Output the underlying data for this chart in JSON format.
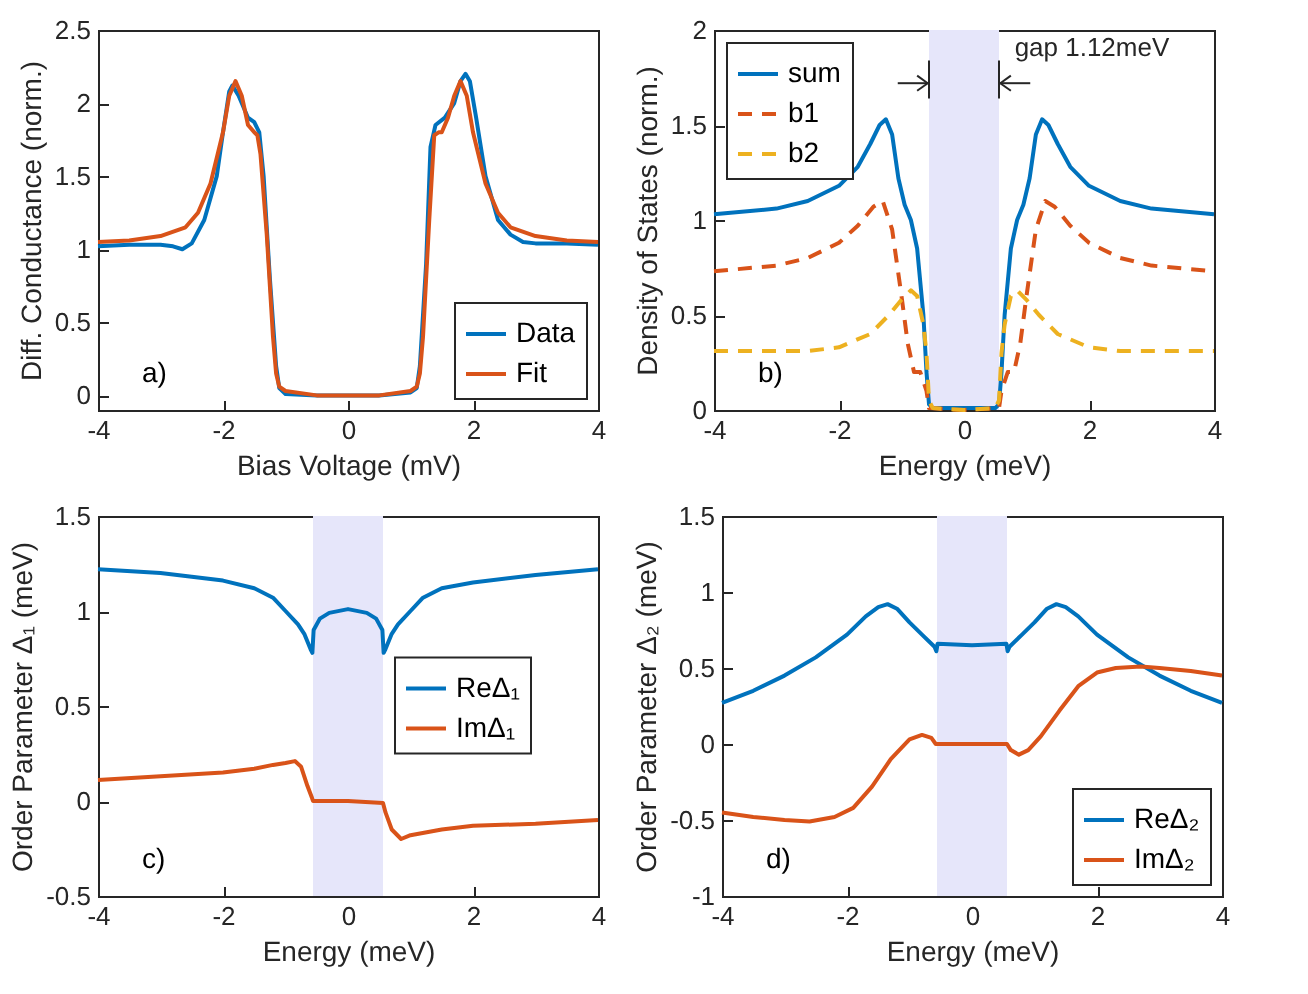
{
  "chart_data": [
    {
      "type": "line",
      "xlabel": "Bias Voltage (mV)",
      "ylabel": "Diff. Conductance (norm.)",
      "xlim": [
        -4,
        4
      ],
      "xticks": [
        -4,
        -2,
        0,
        2,
        4
      ],
      "ylim": [
        -0.1,
        2.5
      ],
      "yticks": [
        0,
        0.5,
        1,
        1.5,
        2,
        2.5
      ],
      "legend": "bottom right",
      "annotations": [
        "a)"
      ],
      "series": [
        {
          "name": "Data",
          "color": "#0072bd",
          "x": [
            -4,
            -3.5,
            -3,
            -2.8,
            -2.65,
            -2.5,
            -2.3,
            -2.1,
            -2,
            -1.9,
            -1.85,
            -1.75,
            -1.6,
            -1.5,
            -1.42,
            -1.35,
            -1.25,
            -1.15,
            -1.1,
            -1,
            -0.5,
            0,
            0.5,
            1,
            1.1,
            1.15,
            1.25,
            1.32,
            1.4,
            1.55,
            1.7,
            1.8,
            1.88,
            1.95,
            2.05,
            2.2,
            2.4,
            2.6,
            2.8,
            3,
            3.5,
            4
          ],
          "values": [
            1.02,
            1.03,
            1.03,
            1.02,
            1.0,
            1.04,
            1.2,
            1.5,
            1.8,
            2.08,
            2.12,
            2.05,
            1.9,
            1.87,
            1.8,
            1.5,
            0.8,
            0.2,
            0.05,
            0.01,
            0,
            0,
            0,
            0.02,
            0.05,
            0.2,
            0.9,
            1.7,
            1.85,
            1.9,
            2.0,
            2.15,
            2.2,
            2.15,
            1.9,
            1.5,
            1.2,
            1.1,
            1.05,
            1.04,
            1.04,
            1.03
          ]
        },
        {
          "name": "Fit",
          "color": "#d95319",
          "x": [
            -4,
            -3.5,
            -3,
            -2.6,
            -2.4,
            -2.2,
            -2,
            -1.9,
            -1.8,
            -1.7,
            -1.6,
            -1.5,
            -1.45,
            -1.4,
            -1.3,
            -1.2,
            -1.15,
            -1.1,
            -1,
            -0.5,
            0,
            0.5,
            1,
            1.1,
            1.15,
            1.2,
            1.3,
            1.38,
            1.45,
            1.5,
            1.6,
            1.7,
            1.8,
            1.9,
            2,
            2.2,
            2.4,
            2.6,
            3,
            3.5,
            4
          ],
          "values": [
            1.05,
            1.06,
            1.09,
            1.15,
            1.25,
            1.45,
            1.8,
            2.05,
            2.15,
            2.05,
            1.85,
            1.8,
            1.78,
            1.65,
            1.1,
            0.4,
            0.15,
            0.06,
            0.03,
            0,
            0,
            0,
            0.03,
            0.06,
            0.15,
            0.4,
            1.2,
            1.78,
            1.8,
            1.8,
            1.9,
            2.05,
            2.15,
            2.05,
            1.8,
            1.45,
            1.25,
            1.15,
            1.09,
            1.06,
            1.05
          ]
        }
      ]
    },
    {
      "type": "line",
      "xlabel": "Energy (meV)",
      "ylabel": "Density of States (norm.)",
      "xlim": [
        -4,
        4
      ],
      "xticks": [
        -4,
        -2,
        0,
        2,
        4
      ],
      "ylim": [
        0,
        2
      ],
      "yticks": [
        0,
        0.5,
        1,
        1.5,
        2
      ],
      "legend": "top left",
      "annotations": [
        "b)"
      ],
      "bands": [
        {
          "axis": "x",
          "from": -0.56,
          "to": 0.56,
          "label": "gap 1.12meV",
          "color": "#e6e6fa"
        }
      ],
      "series": [
        {
          "name": "sum",
          "color": "#0072bd",
          "line_style": "solid",
          "x": [
            -4,
            -3,
            -2.5,
            -2,
            -1.7,
            -1.5,
            -1.35,
            -1.25,
            -1.15,
            -1.05,
            -0.95,
            -0.85,
            -0.75,
            -0.65,
            -0.6,
            -0.56,
            -0.5,
            0,
            0.5,
            0.56,
            0.6,
            0.65,
            0.75,
            0.85,
            0.95,
            1.05,
            1.15,
            1.25,
            1.35,
            1.5,
            1.7,
            2,
            2.5,
            3,
            4
          ],
          "values": [
            1.03,
            1.06,
            1.1,
            1.18,
            1.28,
            1.4,
            1.5,
            1.53,
            1.45,
            1.22,
            1.08,
            1.0,
            0.85,
            0.5,
            0.2,
            0.03,
            0.01,
            0.01,
            0.01,
            0.03,
            0.2,
            0.5,
            0.85,
            1.0,
            1.08,
            1.22,
            1.45,
            1.53,
            1.5,
            1.4,
            1.28,
            1.18,
            1.1,
            1.06,
            1.03
          ]
        },
        {
          "name": "b1",
          "color": "#d95319",
          "line_style": "dashed",
          "x": [
            -4,
            -3,
            -2.5,
            -2,
            -1.7,
            -1.45,
            -1.3,
            -1.15,
            -1,
            -0.9,
            -0.8,
            -0.7,
            -0.6,
            -0.56,
            0,
            0.56,
            0.6,
            0.7,
            0.8,
            0.9,
            1,
            1.15,
            1.3,
            1.45,
            1.7,
            2,
            2.5,
            3,
            4
          ],
          "values": [
            0.73,
            0.76,
            0.8,
            0.88,
            0.97,
            1.07,
            1.1,
            0.95,
            0.6,
            0.35,
            0.2,
            0.2,
            0.1,
            0.01,
            0,
            0.01,
            0.1,
            0.2,
            0.2,
            0.35,
            0.6,
            0.95,
            1.1,
            1.07,
            0.97,
            0.88,
            0.8,
            0.76,
            0.73
          ]
        },
        {
          "name": "b2",
          "color": "#edb120",
          "line_style": "dashed",
          "x": [
            -4,
            -2.5,
            -2,
            -1.5,
            -1.2,
            -1,
            -0.85,
            -0.75,
            -0.65,
            -0.6,
            -0.56,
            -0.5,
            0,
            0.5,
            0.56,
            0.6,
            0.65,
            0.75,
            0.85,
            1,
            1.2,
            1.5,
            2,
            2.5,
            4
          ],
          "values": [
            0.31,
            0.31,
            0.33,
            0.4,
            0.5,
            0.58,
            0.63,
            0.6,
            0.45,
            0.3,
            0.05,
            0.01,
            0,
            0.01,
            0.05,
            0.3,
            0.45,
            0.6,
            0.63,
            0.58,
            0.5,
            0.4,
            0.33,
            0.31,
            0.31
          ]
        }
      ]
    },
    {
      "type": "line",
      "xlabel": "Energy (meV)",
      "ylabel": "Order Parameter Δ₁ (meV)",
      "xlim": [
        -4,
        4
      ],
      "xticks": [
        -4,
        -2,
        0,
        2,
        4
      ],
      "ylim": [
        -0.5,
        1.5
      ],
      "yticks": [
        -0.5,
        0,
        0.5,
        1,
        1.5
      ],
      "legend": "right",
      "annotations": [
        "c)"
      ],
      "bands": [
        {
          "axis": "x",
          "from": -0.56,
          "to": 0.56,
          "color": "#e6e6fa"
        }
      ],
      "series": [
        {
          "name": "ReΔ₁",
          "color": "#0072bd",
          "x": [
            -4,
            -3,
            -2,
            -1.5,
            -1.2,
            -1,
            -0.8,
            -0.7,
            -0.6,
            -0.57,
            -0.55,
            -0.45,
            -0.3,
            0,
            0.3,
            0.45,
            0.55,
            0.57,
            0.6,
            0.7,
            0.8,
            1,
            1.2,
            1.5,
            2,
            3,
            4
          ],
          "values": [
            1.22,
            1.2,
            1.16,
            1.12,
            1.07,
            1.0,
            0.93,
            0.88,
            0.8,
            0.78,
            0.9,
            0.96,
            0.99,
            1.01,
            0.99,
            0.96,
            0.9,
            0.78,
            0.8,
            0.88,
            0.93,
            1.0,
            1.07,
            1.12,
            1.15,
            1.19,
            1.22
          ]
        },
        {
          "name": "ImΔ₁",
          "color": "#d95319",
          "x": [
            -4,
            -3,
            -2,
            -1.5,
            -1.2,
            -1,
            -0.85,
            -0.75,
            -0.65,
            -0.58,
            -0.56,
            0,
            0.56,
            0.6,
            0.7,
            0.85,
            1,
            1.5,
            2,
            3,
            4
          ],
          "values": [
            0.11,
            0.13,
            0.15,
            0.17,
            0.19,
            0.2,
            0.21,
            0.18,
            0.08,
            0.02,
            0,
            0,
            -0.01,
            -0.06,
            -0.15,
            -0.2,
            -0.18,
            -0.15,
            -0.13,
            -0.12,
            -0.1
          ]
        }
      ]
    },
    {
      "type": "line",
      "xlabel": "Energy (meV)",
      "ylabel": "Order Parameter Δ₂ (meV)",
      "xlim": [
        -4,
        4
      ],
      "xticks": [
        -4,
        -2,
        0,
        2,
        4
      ],
      "ylim": [
        -1,
        1.5
      ],
      "yticks": [
        -1,
        -0.5,
        0,
        0.5,
        1,
        1.5
      ],
      "legend": "bottom right",
      "annotations": [
        "d)"
      ],
      "bands": [
        {
          "axis": "x",
          "from": -0.56,
          "to": 0.56,
          "color": "#e6e6fa"
        }
      ],
      "series": [
        {
          "name": "ReΔ₂",
          "color": "#0072bd",
          "x": [
            -4,
            -3.5,
            -3,
            -2.5,
            -2,
            -1.7,
            -1.5,
            -1.35,
            -1.2,
            -1,
            -0.8,
            -0.6,
            -0.57,
            -0.55,
            0,
            0.55,
            0.57,
            0.6,
            0.8,
            1,
            1.2,
            1.35,
            1.5,
            1.7,
            2,
            2.5,
            3,
            3.5,
            4
          ],
          "values": [
            0.27,
            0.35,
            0.45,
            0.57,
            0.72,
            0.84,
            0.9,
            0.92,
            0.89,
            0.8,
            0.72,
            0.64,
            0.61,
            0.66,
            0.65,
            0.66,
            0.61,
            0.64,
            0.72,
            0.8,
            0.89,
            0.92,
            0.9,
            0.84,
            0.72,
            0.57,
            0.45,
            0.35,
            0.27
          ]
        },
        {
          "name": "ImΔ₂",
          "color": "#d95319",
          "x": [
            -4,
            -3.5,
            -3,
            -2.6,
            -2.2,
            -1.9,
            -1.6,
            -1.3,
            -1,
            -0.8,
            -0.65,
            -0.58,
            0,
            0.56,
            0.62,
            0.75,
            0.9,
            1.1,
            1.4,
            1.7,
            2,
            2.3,
            2.7,
            3,
            3.5,
            4
          ],
          "values": [
            -0.45,
            -0.48,
            -0.5,
            -0.51,
            -0.48,
            -0.42,
            -0.28,
            -0.1,
            0.03,
            0.06,
            0.04,
            0,
            0,
            0,
            -0.04,
            -0.07,
            -0.04,
            0.05,
            0.22,
            0.38,
            0.47,
            0.5,
            0.51,
            0.5,
            0.48,
            0.45
          ]
        }
      ]
    }
  ]
}
